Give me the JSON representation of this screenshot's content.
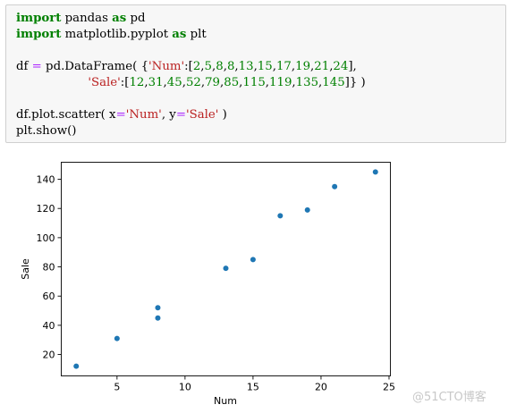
{
  "code": {
    "lines": [
      [
        {
          "t": "import",
          "c": "kw"
        },
        {
          "t": " pandas "
        },
        {
          "t": "as",
          "c": "kw"
        },
        {
          "t": " pd"
        }
      ],
      [
        {
          "t": "import",
          "c": "kw"
        },
        {
          "t": " matplotlib.pyplot "
        },
        {
          "t": "as",
          "c": "kw"
        },
        {
          "t": " plt"
        }
      ],
      [],
      [
        {
          "t": "df "
        },
        {
          "t": "=",
          "c": "op"
        },
        {
          "t": " pd.DataFrame( {"
        },
        {
          "t": "'Num'",
          "c": "str"
        },
        {
          "t": ":["
        },
        {
          "t": "2",
          "c": "num"
        },
        {
          "t": ","
        },
        {
          "t": "5",
          "c": "num"
        },
        {
          "t": ","
        },
        {
          "t": "8",
          "c": "num"
        },
        {
          "t": ","
        },
        {
          "t": "8",
          "c": "num"
        },
        {
          "t": ","
        },
        {
          "t": "13",
          "c": "num"
        },
        {
          "t": ","
        },
        {
          "t": "15",
          "c": "num"
        },
        {
          "t": ","
        },
        {
          "t": "17",
          "c": "num"
        },
        {
          "t": ","
        },
        {
          "t": "19",
          "c": "num"
        },
        {
          "t": ","
        },
        {
          "t": "21",
          "c": "num"
        },
        {
          "t": ","
        },
        {
          "t": "24",
          "c": "num"
        },
        {
          "t": "],"
        }
      ],
      [
        {
          "t": "                   "
        },
        {
          "t": "'Sale'",
          "c": "str"
        },
        {
          "t": ":["
        },
        {
          "t": "12",
          "c": "num"
        },
        {
          "t": ","
        },
        {
          "t": "31",
          "c": "num"
        },
        {
          "t": ","
        },
        {
          "t": "45",
          "c": "num"
        },
        {
          "t": ","
        },
        {
          "t": "52",
          "c": "num"
        },
        {
          "t": ","
        },
        {
          "t": "79",
          "c": "num"
        },
        {
          "t": ","
        },
        {
          "t": "85",
          "c": "num"
        },
        {
          "t": ","
        },
        {
          "t": "115",
          "c": "num"
        },
        {
          "t": ","
        },
        {
          "t": "119",
          "c": "num"
        },
        {
          "t": ","
        },
        {
          "t": "135",
          "c": "num"
        },
        {
          "t": ","
        },
        {
          "t": "145",
          "c": "num"
        },
        {
          "t": "]} )"
        }
      ],
      [],
      [
        {
          "t": "df.plot.scatter( x"
        },
        {
          "t": "=",
          "c": "op"
        },
        {
          "t": "'Num'",
          "c": "str"
        },
        {
          "t": ", y"
        },
        {
          "t": "=",
          "c": "op"
        },
        {
          "t": "'Sale'",
          "c": "str"
        },
        {
          "t": " )"
        }
      ],
      [
        {
          "t": "plt.show()"
        }
      ]
    ]
  },
  "chart_data": {
    "type": "scatter",
    "x": [
      2,
      5,
      8,
      8,
      13,
      15,
      17,
      19,
      21,
      24
    ],
    "y": [
      12,
      31,
      45,
      52,
      79,
      85,
      115,
      119,
      135,
      145
    ],
    "xlabel": "Num",
    "ylabel": "Sale",
    "xticks": [
      5,
      10,
      15,
      20,
      25
    ],
    "yticks": [
      20,
      40,
      60,
      80,
      100,
      120,
      140
    ],
    "xlim": [
      0.9,
      25.1
    ],
    "ylim": [
      5.35,
      151.65
    ],
    "grid": false,
    "marker_color": "#1f77b4"
  },
  "watermark": "@51CTO博客"
}
